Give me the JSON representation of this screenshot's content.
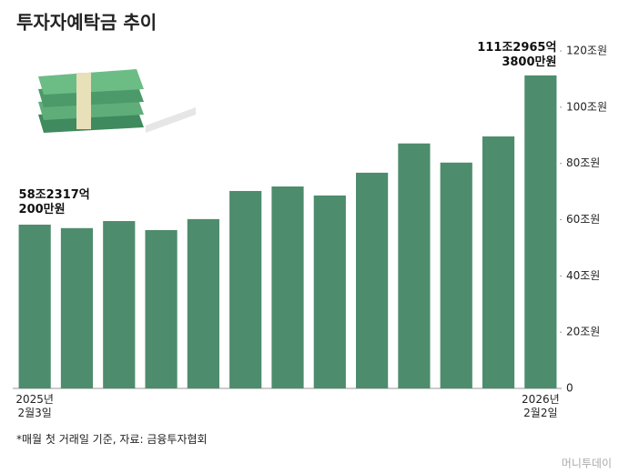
{
  "chart_data": {
    "type": "bar",
    "title": "투자자예탁금 추이",
    "categories": [
      "2025년 2월3일",
      null,
      null,
      null,
      null,
      null,
      null,
      null,
      null,
      null,
      null,
      null,
      "2026년 2월2일"
    ],
    "values": [
      58.231702,
      57.0,
      59.5,
      56.3,
      60.2,
      70.2,
      71.8,
      68.6,
      76.7,
      87.1,
      80.3,
      89.6,
      111.296538
    ],
    "value_labels": [
      "58조2317억 200만원",
      null,
      null,
      null,
      null,
      null,
      null,
      null,
      null,
      null,
      null,
      null,
      "111조2965억 3800만원"
    ],
    "color": "#4d8c6c",
    "ylim": [
      0,
      120
    ],
    "yticks": [
      0,
      {
        "value": 20,
        "label": "20조원"
      },
      {
        "value": 40,
        "label": "40조원"
      },
      {
        "value": 60,
        "label": "60조원"
      },
      {
        "value": 80,
        "label": "80조원"
      },
      {
        "value": 100,
        "label": "100조원"
      },
      {
        "value": 120,
        "label": "120조원"
      }
    ],
    "note": "*매월 첫 거래일 기준, 자료: 금융투자협회",
    "source": "머니투데이"
  }
}
